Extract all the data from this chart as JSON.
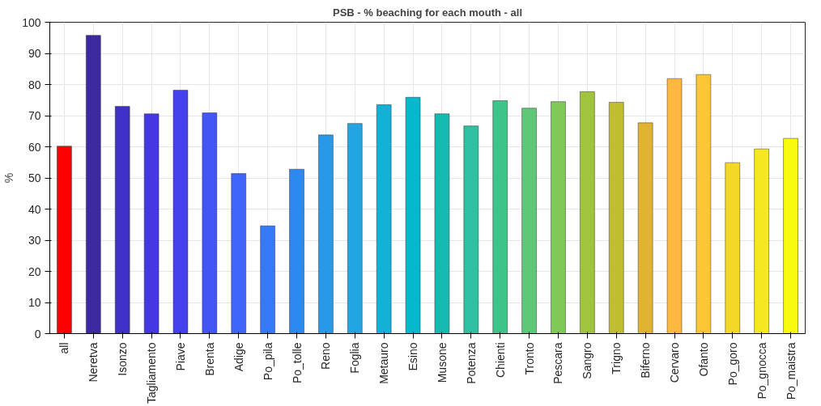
{
  "chart_data": {
    "type": "bar",
    "title": "PSB - % beaching for each mouth - all",
    "ylabel": "%",
    "categories": [
      "all",
      "Neretva",
      "Isonzo",
      "Tagliamento",
      "Piave",
      "Brenta",
      "Adige",
      "Po_pila",
      "Po_tolle",
      "Reno",
      "Foglia",
      "Metauro",
      "Esino",
      "Musone",
      "Potenza",
      "Chienti",
      "Tronto",
      "Pescara",
      "Sangro",
      "Trigno",
      "Biferno",
      "Cervaro",
      "Ofanto",
      "Po_goro",
      "Po_gnocca",
      "Po_maistra"
    ],
    "values": [
      60.2,
      95.8,
      73.0,
      70.6,
      78.2,
      70.9,
      51.4,
      34.6,
      52.8,
      63.8,
      67.5,
      73.5,
      75.9,
      70.6,
      66.7,
      74.8,
      72.4,
      74.5,
      77.7,
      74.3,
      67.7,
      81.9,
      83.2,
      54.9,
      59.3,
      62.7
    ],
    "colors": [
      "#ff0000",
      "#3c28a0",
      "#3f30c8",
      "#4538e0",
      "#4440ee",
      "#4455f8",
      "#3f65fa",
      "#3578fa",
      "#2d88f0",
      "#2898e8",
      "#22a5e2",
      "#13b0d8",
      "#05b8cc",
      "#15bab0",
      "#2ec0a0",
      "#3ec488",
      "#5ec878",
      "#80c858",
      "#a0c43e",
      "#c0be30",
      "#e0b430",
      "#feb840",
      "#fcc634",
      "#f4d828",
      "#f5e820",
      "#f8fa10"
    ],
    "ylim": [
      0,
      100
    ],
    "yticks": [
      0,
      10,
      20,
      30,
      40,
      50,
      60,
      70,
      80,
      90,
      100
    ],
    "grid": true
  }
}
